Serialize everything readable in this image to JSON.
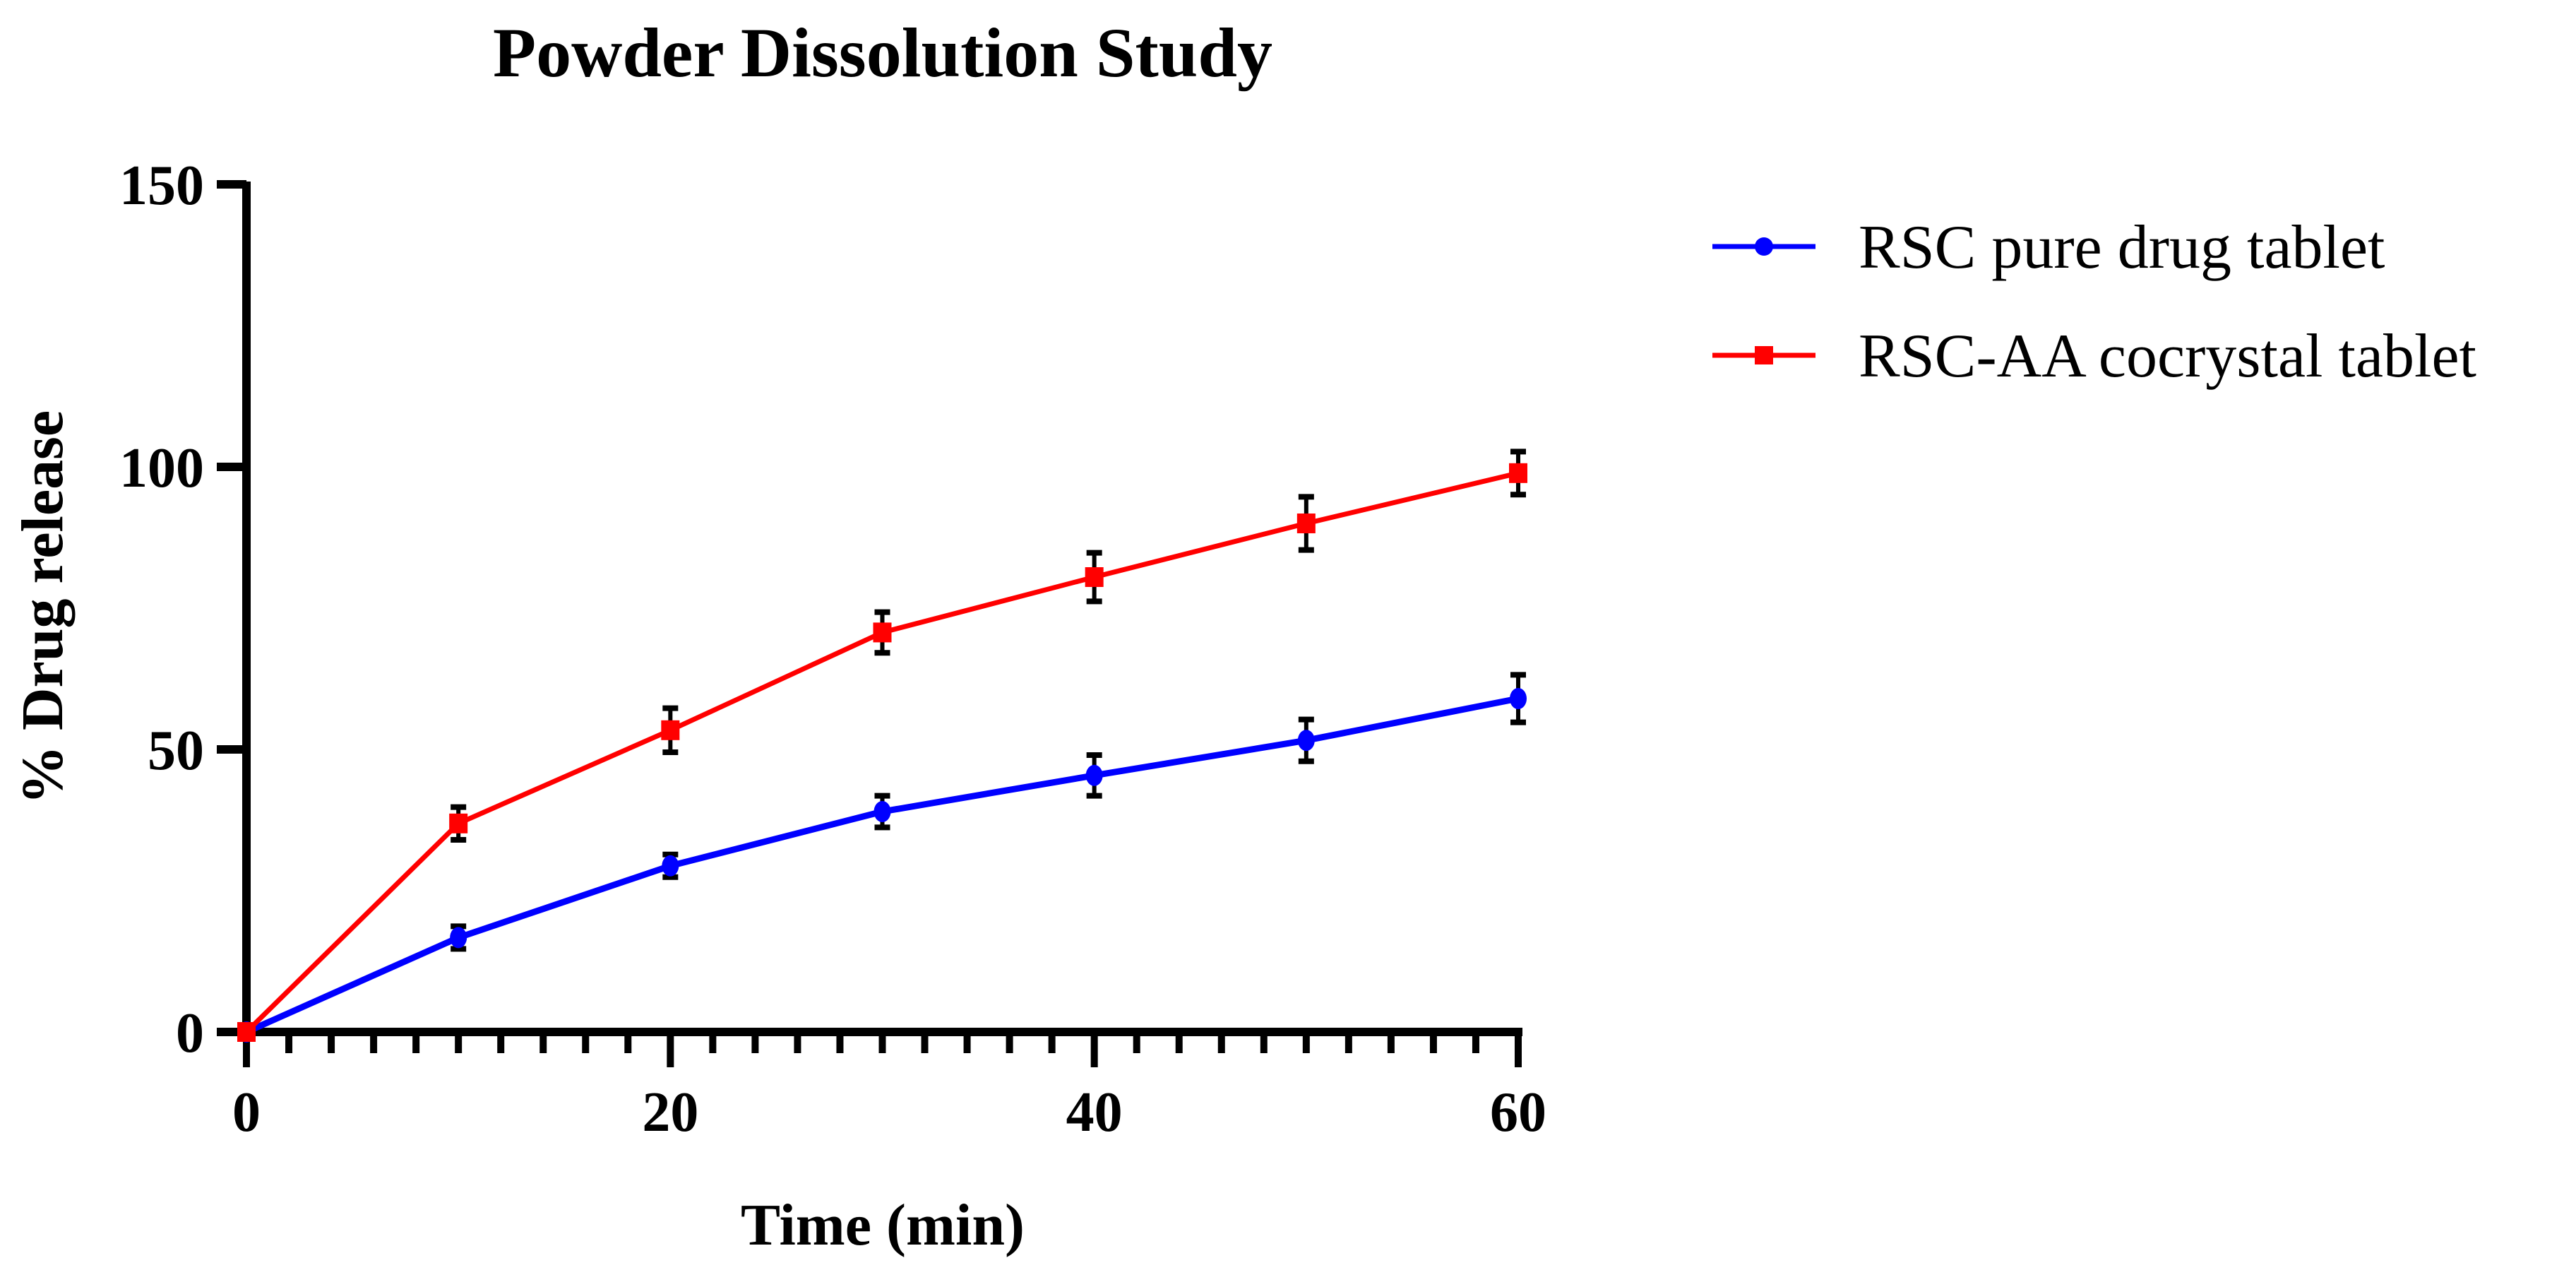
{
  "chart_data": {
    "type": "line",
    "title": "Powder Dissolution Study",
    "xlabel": "Time (min)",
    "ylabel": "% Drug release",
    "xlim": [
      0,
      60
    ],
    "ylim": [
      0,
      150
    ],
    "x_ticks": [
      0,
      20,
      40,
      60
    ],
    "x_minor_tick_step": 2,
    "y_ticks": [
      0,
      50,
      100,
      150
    ],
    "grid": false,
    "legend_position": "right",
    "x": [
      0,
      10,
      20,
      30,
      40,
      50,
      60
    ],
    "series": [
      {
        "name": "RSC pure drug tablet",
        "color": "#0000ff",
        "marker": "circle",
        "values": [
          0,
          16.7,
          29.4,
          39.0,
          45.4,
          51.6,
          59.0
        ],
        "error": [
          0,
          2.0,
          2.0,
          2.8,
          3.6,
          3.7,
          4.2
        ]
      },
      {
        "name": "RSC-AA cocrystal tablet",
        "color": "#ff0000",
        "marker": "square",
        "values": [
          0,
          36.9,
          53.4,
          70.7,
          80.5,
          90.0,
          98.9
        ],
        "error": [
          0,
          2.9,
          3.9,
          3.6,
          4.3,
          4.7,
          3.8
        ]
      }
    ]
  }
}
